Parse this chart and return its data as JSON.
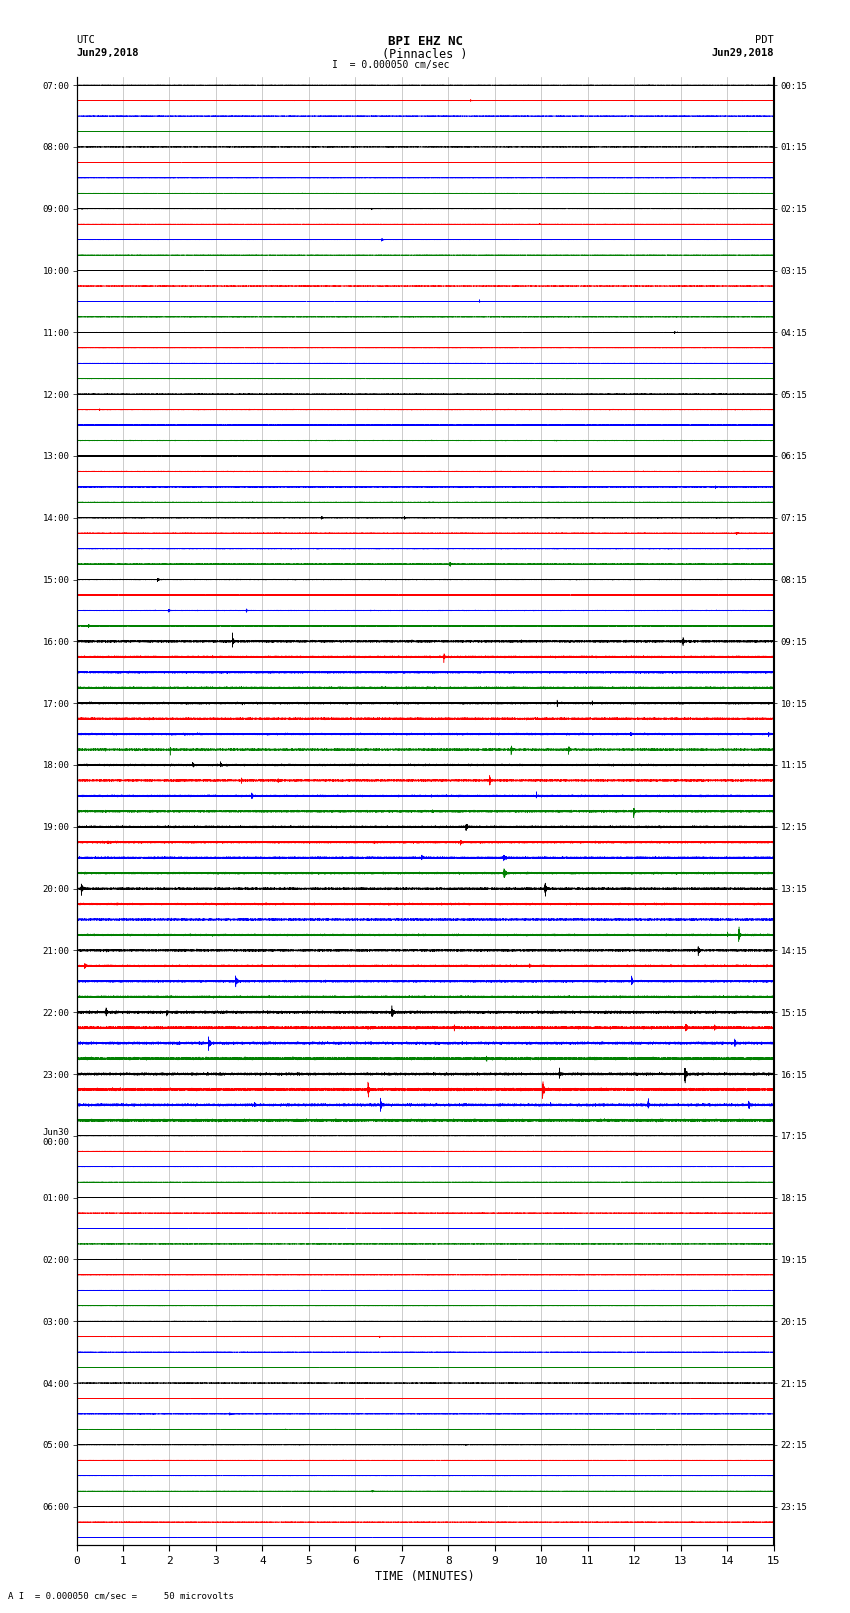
{
  "title_line1": "BPI EHZ NC",
  "title_line2": "(Pinnacles )",
  "scale_text": "= 0.000050 cm/sec",
  "left_label": "UTC",
  "left_date": "Jun29,2018",
  "right_label": "PDT",
  "right_date": "Jun29,2018",
  "xlabel": "TIME (MINUTES)",
  "bottom_note": "= 0.000050 cm/sec =     50 microvolts",
  "xmin": 0,
  "xmax": 15,
  "trace_colors": [
    "black",
    "red",
    "blue",
    "green"
  ],
  "bg_color": "#ffffff",
  "utc_labels": [
    "07:00",
    "",
    "",
    "",
    "08:00",
    "",
    "",
    "",
    "09:00",
    "",
    "",
    "",
    "10:00",
    "",
    "",
    "",
    "11:00",
    "",
    "",
    "",
    "12:00",
    "",
    "",
    "",
    "13:00",
    "",
    "",
    "",
    "14:00",
    "",
    "",
    "",
    "15:00",
    "",
    "",
    "",
    "16:00",
    "",
    "",
    "",
    "17:00",
    "",
    "",
    "",
    "18:00",
    "",
    "",
    "",
    "19:00",
    "",
    "",
    "",
    "20:00",
    "",
    "",
    "",
    "21:00",
    "",
    "",
    "",
    "22:00",
    "",
    "",
    "",
    "23:00",
    "",
    "",
    "",
    "Jun30\n00:00",
    "",
    "",
    "",
    "01:00",
    "",
    "",
    "",
    "02:00",
    "",
    "",
    "",
    "03:00",
    "",
    "",
    "",
    "04:00",
    "",
    "",
    "",
    "05:00",
    "",
    "",
    "",
    "06:00",
    "",
    ""
  ],
  "pdt_labels": [
    "00:15",
    "",
    "",
    "",
    "01:15",
    "",
    "",
    "",
    "02:15",
    "",
    "",
    "",
    "03:15",
    "",
    "",
    "",
    "04:15",
    "",
    "",
    "",
    "05:15",
    "",
    "",
    "",
    "06:15",
    "",
    "",
    "",
    "07:15",
    "",
    "",
    "",
    "08:15",
    "",
    "",
    "",
    "09:15",
    "",
    "",
    "",
    "10:15",
    "",
    "",
    "",
    "11:15",
    "",
    "",
    "",
    "12:15",
    "",
    "",
    "",
    "13:15",
    "",
    "",
    "",
    "14:15",
    "",
    "",
    "",
    "15:15",
    "",
    "",
    "",
    "16:15",
    "",
    "",
    "",
    "17:15",
    "",
    "",
    "",
    "18:15",
    "",
    "",
    "",
    "19:15",
    "",
    "",
    "",
    "20:15",
    "",
    "",
    "",
    "21:15",
    "",
    "",
    "",
    "22:15",
    "",
    "",
    "",
    "23:15",
    "",
    ""
  ],
  "grid_color": "#888888",
  "trace_linewidth": 0.35
}
